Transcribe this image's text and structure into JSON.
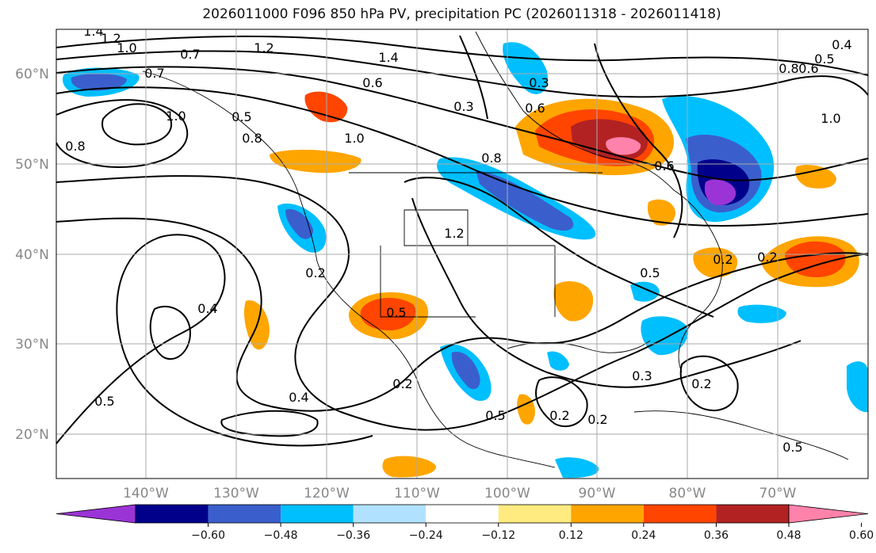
{
  "title": "2026011000 F096 850 hPa PV, precipitation PC (2026011318 - 2026011418)",
  "map": {
    "lat_ticks": [
      "60°N",
      "50°N",
      "40°N",
      "30°N",
      "20°N"
    ],
    "lon_ticks": [
      "140°W",
      "130°W",
      "120°W",
      "110°W",
      "100°W",
      "90°W",
      "80°W",
      "70°W"
    ],
    "contour_labels": [
      "1.4",
      "1.2",
      "1.0",
      "0.7",
      "0.7",
      "1.0",
      "1.2",
      "1.4",
      "0.5",
      "0.6",
      "0.8",
      "1.0",
      "0.8",
      "0.3",
      "0.3",
      "0.6",
      "0.6",
      "0.8",
      "1.2",
      "0.5",
      "0.2",
      "0.4",
      "0.5",
      "0.3",
      "0.4",
      "0.5",
      "0.5",
      "0.2",
      "0.2",
      "0.2",
      "0.5",
      "0.2",
      "0.2",
      "0.2",
      "0.4",
      "0.5",
      "0.6",
      "0.8",
      "1.0"
    ]
  },
  "colorbar": {
    "ticks": [
      "−0.60",
      "−0.48",
      "−0.36",
      "−0.24",
      "−0.12",
      "0.12",
      "0.24",
      "0.36",
      "0.48",
      "0.60"
    ],
    "colors": [
      "#9b34d6",
      "#00008b",
      "#3a5fcd",
      "#00bfff",
      "#b0e2ff",
      "#ffffff",
      "#ffeb80",
      "#ffa500",
      "#ff4500",
      "#b22222",
      "#ff82ab"
    ]
  }
}
